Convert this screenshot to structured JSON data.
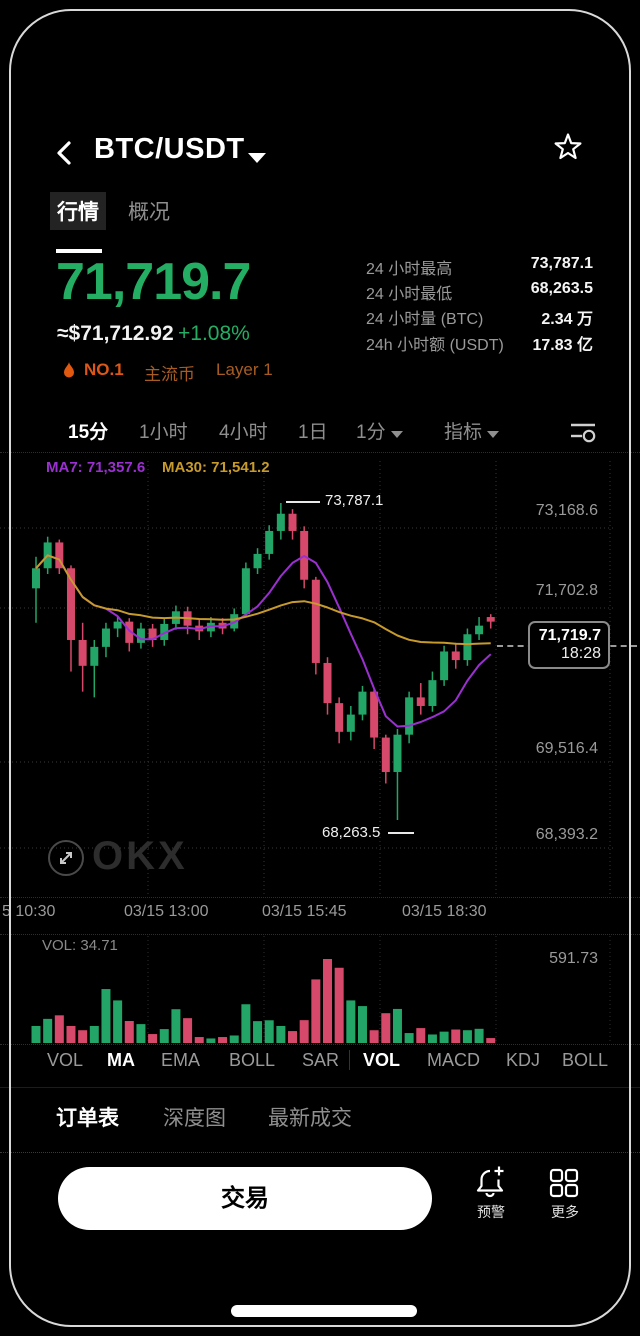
{
  "colors": {
    "up": "#23a567",
    "down": "#d6496a",
    "ma7": "#9b30d0",
    "ma30": "#c79a2c",
    "price_green": "#24ae64",
    "accent_orange": "#dd5718",
    "badge_orange": "#a85c22"
  },
  "header": {
    "title": "BTC/USDT"
  },
  "tabs": [
    {
      "label": "行情",
      "active": true
    },
    {
      "label": "概况",
      "active": false
    }
  ],
  "price_panel": {
    "price": "71,719.7",
    "fiat": "≈$71,712.92",
    "change": "+1.08%",
    "badges": [
      {
        "label": "NO.1"
      },
      {
        "label": "主流币"
      },
      {
        "label": "Layer 1"
      }
    ]
  },
  "stats": {
    "rows": [
      {
        "label": "24 小时最高",
        "value": "73,787.1"
      },
      {
        "label": "24 小时最低",
        "value": "68,263.5"
      },
      {
        "label": "24 小时量 (BTC)",
        "value": "2.34 万"
      },
      {
        "label": "24h 小时额 (USDT)",
        "value": "17.83 亿"
      }
    ]
  },
  "timeframes": {
    "items": [
      {
        "label": "15分",
        "active": true
      },
      {
        "label": "1小时",
        "active": false
      },
      {
        "label": "4小时",
        "active": false
      },
      {
        "label": "1日",
        "active": false
      },
      {
        "label": "1分",
        "active": false,
        "caret": true
      },
      {
        "label": "指标",
        "active": false,
        "caret": true
      }
    ]
  },
  "chart_data": {
    "type": "candlestick",
    "symbol": "BTC/USDT",
    "interval": "15分",
    "ma7_label": "MA7: 71,357.6",
    "ma30_label": "MA30: 71,541.2",
    "high_annotation": "73,787.1",
    "low_annotation": "68,263.5",
    "last_price": "71,719.7",
    "last_time": "18:28",
    "y_axis_labels": [
      "73,168.6",
      "71,702.8",
      "69,516.4",
      "68,393.2"
    ],
    "x_axis_labels": [
      "5 10:30",
      "03/15 13:00",
      "03/15 15:45",
      "03/15 18:30"
    ],
    "vol_label": "VOL: 34.71",
    "vol_axis_max": "591.73",
    "vol_axis_max_value": 591.73,
    "value_range": [
      68263.5,
      73787.1
    ],
    "candles_format": [
      "open",
      "close",
      "high",
      "low",
      "volume"
    ],
    "candles": [
      [
        72300,
        72650,
        72850,
        71700,
        120
      ],
      [
        72650,
        73100,
        73200,
        72550,
        170
      ],
      [
        73100,
        72650,
        73150,
        72550,
        195
      ],
      [
        72650,
        71400,
        72700,
        70850,
        120
      ],
      [
        71400,
        70950,
        71700,
        70500,
        90
      ],
      [
        70950,
        71280,
        71400,
        70400,
        120
      ],
      [
        71280,
        71600,
        71700,
        71100,
        380
      ],
      [
        71600,
        71720,
        71800,
        71450,
        300
      ],
      [
        71720,
        71350,
        71780,
        71200,
        155
      ],
      [
        71350,
        71600,
        71700,
        71250,
        133
      ],
      [
        71600,
        71400,
        71680,
        71280,
        63
      ],
      [
        71400,
        71680,
        71780,
        71300,
        98
      ],
      [
        71680,
        71900,
        72000,
        71580,
        238
      ],
      [
        71900,
        71650,
        71980,
        71500,
        175
      ],
      [
        71650,
        71550,
        71750,
        71400,
        42
      ],
      [
        71550,
        71700,
        71800,
        71450,
        32
      ],
      [
        71700,
        71600,
        71780,
        71500,
        42
      ],
      [
        71600,
        71850,
        71950,
        71550,
        53
      ],
      [
        71850,
        72650,
        72750,
        71800,
        273
      ],
      [
        72650,
        72900,
        73000,
        72550,
        154
      ],
      [
        72900,
        73300,
        73400,
        72800,
        160
      ],
      [
        73300,
        73600,
        73787.1,
        73150,
        120
      ],
      [
        73600,
        73300,
        73680,
        73150,
        84
      ],
      [
        73300,
        72450,
        73380,
        72300,
        161
      ],
      [
        72450,
        71000,
        72500,
        70800,
        448
      ],
      [
        71000,
        70300,
        71100,
        70100,
        591.73
      ],
      [
        70300,
        69800,
        70400,
        69600,
        530
      ],
      [
        69800,
        70100,
        70250,
        69650,
        300
      ],
      [
        70100,
        70500,
        70600,
        70000,
        260
      ],
      [
        70500,
        69700,
        70550,
        69500,
        90
      ],
      [
        69700,
        69100,
        69750,
        68900,
        210
      ],
      [
        69100,
        69750,
        69850,
        68263.5,
        240
      ],
      [
        69750,
        70400,
        70500,
        69600,
        70
      ],
      [
        70400,
        70250,
        70650,
        70100,
        105
      ],
      [
        70250,
        70700,
        70850,
        70150,
        60
      ],
      [
        70700,
        71200,
        71300,
        70600,
        80
      ],
      [
        71200,
        71050,
        71350,
        70900,
        95
      ],
      [
        71050,
        71500,
        71600,
        70950,
        90
      ],
      [
        71500,
        71650,
        71800,
        71400,
        100
      ],
      [
        71800,
        71719.7,
        71850,
        71600,
        34.71
      ]
    ]
  },
  "indicators": {
    "items": [
      {
        "label": "VOL",
        "active": false
      },
      {
        "label": "MA",
        "active": true
      },
      {
        "label": "EMA",
        "active": false
      },
      {
        "label": "BOLL",
        "active": false
      },
      {
        "label": "SAR",
        "active": false
      },
      {
        "label": "VOL",
        "active": true
      },
      {
        "label": "MACD",
        "active": false
      },
      {
        "label": "KDJ",
        "active": false
      },
      {
        "label": "BOLL",
        "active": false
      }
    ]
  },
  "orderbook_tabs": [
    {
      "label": "订单表",
      "active": true
    },
    {
      "label": "深度图",
      "active": false
    },
    {
      "label": "最新成交",
      "active": false
    }
  ],
  "actions": {
    "trade": "交易",
    "alert": "预警",
    "more": "更多"
  },
  "watermark": "OKX"
}
